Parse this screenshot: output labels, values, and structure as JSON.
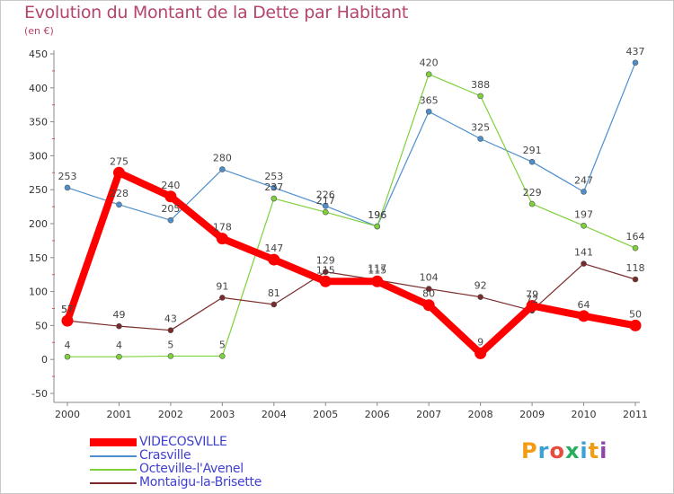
{
  "header": {
    "title": "Evolution du Montant de la Dette par Habitant",
    "subtitle": "(en €)"
  },
  "brand": {
    "text": "Proxiti",
    "letters": [
      "P",
      "r",
      "o",
      "x",
      "i",
      "t",
      "i"
    ],
    "colors": [
      "#f39c12",
      "#3aa0d8",
      "#e74c3c",
      "#27ae60",
      "#3aa0d8",
      "#f39c12",
      "#8e44ad"
    ]
  },
  "chart_data": {
    "type": "line",
    "title": "Evolution du Montant de la Dette par Habitant",
    "subtitle": "(en €)",
    "x": [
      "2000",
      "2001",
      "2002",
      "2003",
      "2004",
      "2005",
      "2006",
      "2007",
      "2008",
      "2009",
      "2010",
      "2011"
    ],
    "ylim": [
      -50,
      450
    ],
    "yticks": [
      -50,
      0,
      50,
      100,
      150,
      200,
      250,
      300,
      350,
      400,
      450
    ],
    "grid": false,
    "legend_position": "bottom-left",
    "series": [
      {
        "name": "VIDECOSVILLE",
        "color": "#ff0000",
        "values": [
          57,
          275,
          240,
          178,
          147,
          115,
          115,
          80,
          9,
          79,
          64,
          50
        ],
        "labels": [
          "57",
          "275",
          "240",
          "178",
          "147",
          "115",
          "115",
          "80",
          "9",
          "79",
          "64",
          "50"
        ]
      },
      {
        "name": "Crasville",
        "color": "#4d8fcc",
        "values": [
          253,
          228,
          205,
          280,
          253,
          226,
          196,
          365,
          325,
          291,
          247,
          437
        ],
        "labels": [
          "253",
          "228",
          "205",
          "280",
          "253",
          "226",
          "196",
          "365",
          "325",
          "291",
          "247",
          "437"
        ]
      },
      {
        "name": "Octeville-l'Avenel",
        "color": "#7fd13b",
        "values": [
          4,
          4,
          5,
          5,
          237,
          217,
          196,
          420,
          388,
          229,
          197,
          164
        ],
        "labels": [
          "4",
          "4",
          "5",
          "5",
          "237",
          "217",
          "196",
          "420",
          "388",
          "229",
          "197",
          "164"
        ]
      },
      {
        "name": "Montaigu-la-Brisette",
        "color": "#7a2a2a",
        "values": [
          57,
          49,
          43,
          91,
          81,
          129,
          117,
          104,
          92,
          72,
          141,
          118
        ],
        "labels": [
          "57",
          "49",
          "43",
          "91",
          "81",
          "129",
          "117",
          "104",
          "92",
          "72",
          "141",
          "118"
        ]
      }
    ]
  }
}
